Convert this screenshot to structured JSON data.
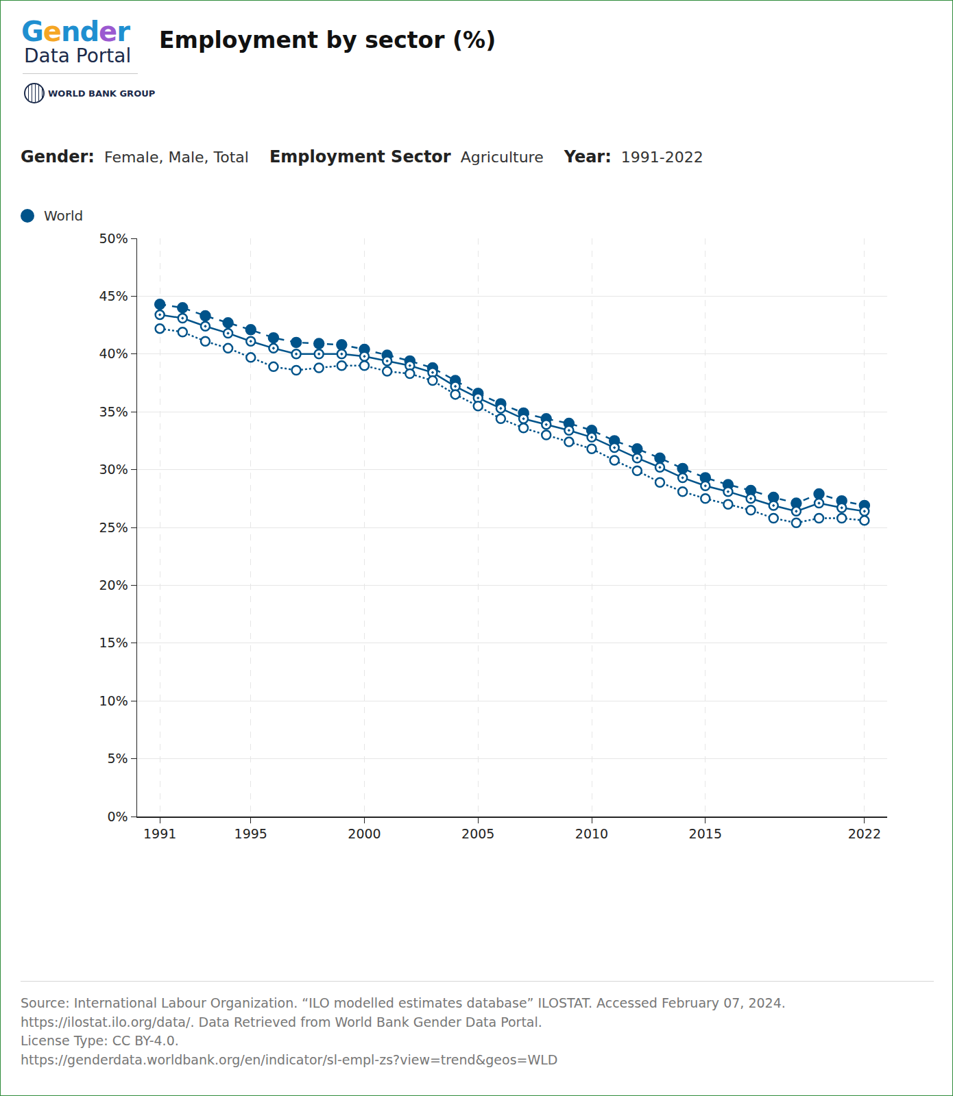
{
  "header": {
    "logo": {
      "line1": "Gender",
      "line2": "Data Portal",
      "org": "WORLD BANK GROUP"
    },
    "filters": [
      {
        "label": "Gender:",
        "value": "Female, Male, Total"
      },
      {
        "label": "Employment Sector",
        "value": "Agriculture"
      },
      {
        "label": "Year:",
        "value": "1991-2022"
      }
    ]
  },
  "chart_data": {
    "type": "line",
    "title": "Employment by sector (%)",
    "legend_label": "World",
    "color": "#00538a",
    "x": [
      1991,
      1992,
      1993,
      1994,
      1995,
      1996,
      1997,
      1998,
      1999,
      2000,
      2001,
      2002,
      2003,
      2004,
      2005,
      2006,
      2007,
      2008,
      2009,
      2010,
      2011,
      2012,
      2013,
      2014,
      2015,
      2016,
      2017,
      2018,
      2019,
      2020,
      2021,
      2022
    ],
    "series": [
      {
        "name": "Male",
        "color": "#00538a",
        "marker": "filled",
        "line_style": "dash",
        "values": [
          44.3,
          44.0,
          43.3,
          42.7,
          42.1,
          41.4,
          41.0,
          40.9,
          40.8,
          40.4,
          39.9,
          39.4,
          38.8,
          37.7,
          36.6,
          35.7,
          34.9,
          34.4,
          34.0,
          33.4,
          32.5,
          31.8,
          31.0,
          30.1,
          29.3,
          28.7,
          28.2,
          27.6,
          27.1,
          27.9,
          27.3,
          26.9
        ]
      },
      {
        "name": "Total",
        "color": "#00538a",
        "marker": "dotted",
        "line_style": "solid",
        "values": [
          43.4,
          43.1,
          42.4,
          41.8,
          41.1,
          40.5,
          40.0,
          40.0,
          40.0,
          39.8,
          39.4,
          39.0,
          38.4,
          37.2,
          36.2,
          35.3,
          34.4,
          33.9,
          33.4,
          32.8,
          31.9,
          31.0,
          30.2,
          29.3,
          28.6,
          28.1,
          27.5,
          26.9,
          26.4,
          27.1,
          26.7,
          26.4
        ]
      },
      {
        "name": "Female",
        "color": "#00538a",
        "marker": "open",
        "line_style": "dot",
        "values": [
          42.2,
          41.9,
          41.1,
          40.5,
          39.7,
          38.9,
          38.6,
          38.8,
          39.0,
          39.0,
          38.5,
          38.3,
          37.7,
          36.5,
          35.5,
          34.4,
          33.6,
          33.0,
          32.4,
          31.8,
          30.8,
          29.9,
          28.9,
          28.1,
          27.5,
          27.0,
          26.5,
          25.8,
          25.4,
          25.8,
          25.8,
          25.6
        ]
      }
    ],
    "xlim": [
      1990,
      2023
    ],
    "xticks": [
      1991,
      1995,
      2000,
      2005,
      2010,
      2015,
      2022
    ],
    "ylim": [
      0,
      50
    ],
    "yticks": [
      {
        "value": 0,
        "label": "0%"
      },
      {
        "value": 5,
        "label": "5%"
      },
      {
        "value": 10,
        "label": "10%"
      },
      {
        "value": 15,
        "label": "15%"
      },
      {
        "value": 20,
        "label": "20%"
      },
      {
        "value": 25,
        "label": "25%"
      },
      {
        "value": 30,
        "label": "30%"
      },
      {
        "value": 35,
        "label": "35%"
      },
      {
        "value": 40,
        "label": "40%"
      },
      {
        "value": 45,
        "label": "45%"
      },
      {
        "value": 50,
        "label": "50%"
      }
    ],
    "grid": true
  },
  "footer": {
    "lines": [
      "Source: International Labour Organization. “ILO modelled estimates database” ILOSTAT. Accessed February 07, 2024.",
      "https://ilostat.ilo.org/data/. Data Retrieved from World Bank Gender Data Portal.",
      "License Type: CC BY-4.0.",
      "https://genderdata.worldbank.org/en/indicator/sl-empl-zs?view=trend&geos=WLD"
    ]
  }
}
